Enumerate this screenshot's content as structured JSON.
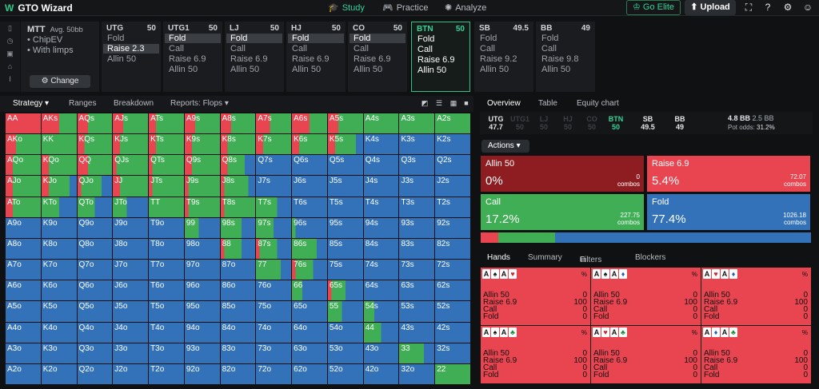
{
  "app": {
    "title": "GTO Wizard"
  },
  "nav": [
    {
      "label": "Study",
      "icon": "graduation-cap-icon"
    },
    {
      "label": "Practice",
      "icon": "gamepad-icon"
    },
    {
      "label": "Analyze",
      "icon": "lightbulb-icon"
    }
  ],
  "buttons": {
    "elite": "Go Elite",
    "upload": "Upload"
  },
  "config": {
    "game": "MTT",
    "stack": "Avg. 50bb",
    "opt1": "ChipEV",
    "opt2": "With limps",
    "change": "Change"
  },
  "positions": [
    {
      "name": "UTG",
      "stack": "50",
      "actions": [
        "Fold",
        "Raise 2.3",
        "Allin 50"
      ],
      "chosen": 1
    },
    {
      "name": "UTG1",
      "stack": "50",
      "actions": [
        "Fold",
        "Call",
        "Raise 6.9",
        "Allin 50"
      ],
      "chosen": 0
    },
    {
      "name": "LJ",
      "stack": "50",
      "actions": [
        "Fold",
        "Call",
        "Raise 6.9",
        "Allin 50"
      ],
      "chosen": 0
    },
    {
      "name": "HJ",
      "stack": "50",
      "actions": [
        "Fold",
        "Call",
        "Raise 6.9",
        "Allin 50"
      ],
      "chosen": 0
    },
    {
      "name": "CO",
      "stack": "50",
      "actions": [
        "Fold",
        "Call",
        "Raise 6.9",
        "Allin 50"
      ],
      "chosen": 0
    },
    {
      "name": "BTN",
      "stack": "50",
      "actions": [
        "Fold",
        "Call",
        "Raise 6.9",
        "Allin 50"
      ],
      "chosen": -1
    },
    {
      "name": "SB",
      "stack": "49.5",
      "actions": [
        "Fold",
        "Call",
        "Raise 9.2",
        "Allin 50"
      ],
      "chosen": -1
    },
    {
      "name": "BB",
      "stack": "49",
      "actions": [
        "Fold",
        "Call",
        "Raise 9.8",
        "Allin 50"
      ],
      "chosen": -1
    }
  ],
  "left_tabs": [
    "Strategy",
    "Ranges",
    "Breakdown",
    "Reports: Flops"
  ],
  "right_tabs": [
    "Overview",
    "Table",
    "Equity chart"
  ],
  "seats": [
    {
      "name": "UTG",
      "stack": "47.7"
    },
    {
      "name": "UTG1",
      "stack": "50"
    },
    {
      "name": "LJ",
      "stack": "50"
    },
    {
      "name": "HJ",
      "stack": "50"
    },
    {
      "name": "CO",
      "stack": "50"
    },
    {
      "name": "BTN",
      "stack": "50"
    },
    {
      "name": "SB",
      "stack": "49.5"
    },
    {
      "name": "BB",
      "stack": "49"
    }
  ],
  "pot": {
    "bb": "4.8 BB",
    "chips": "2.5 BB",
    "odds_label": "Pot odds:",
    "odds": "31.2%"
  },
  "actions_label": "Actions",
  "action_cards": [
    {
      "name": "Allin 50",
      "pct": "0%",
      "combos": "0",
      "unit": "combos",
      "color": "#8e1d22"
    },
    {
      "name": "Raise 6.9",
      "pct": "5.4%",
      "combos": "72.07",
      "unit": "combos",
      "color": "#e84551"
    },
    {
      "name": "Call",
      "pct": "17.2%",
      "combos": "227.75",
      "unit": "combos",
      "color": "#3fae55"
    },
    {
      "name": "Fold",
      "pct": "77.4%",
      "combos": "1026.18",
      "unit": "combos",
      "color": "#3372b8"
    }
  ],
  "freq_bar": [
    0.054,
    0.172,
    0.774
  ],
  "hand_tabs": [
    "Hands",
    "Summary",
    "Filters",
    "Blockers"
  ],
  "hand_combos": [
    {
      "cards": [
        {
          "r": "A",
          "s": "♠",
          "c": "#111"
        },
        {
          "r": "A",
          "s": "♥",
          "c": "#d2232a"
        }
      ],
      "values": [
        "0",
        "100",
        "0",
        "0"
      ]
    },
    {
      "cards": [
        {
          "r": "A",
          "s": "♠",
          "c": "#111"
        },
        {
          "r": "A",
          "s": "♦",
          "c": "#1f5fbf"
        }
      ],
      "values": [
        "0",
        "100",
        "0",
        "0"
      ]
    },
    {
      "cards": [
        {
          "r": "A",
          "s": "♥",
          "c": "#d2232a"
        },
        {
          "r": "A",
          "s": "♦",
          "c": "#1f5fbf"
        }
      ],
      "values": [
        "0",
        "100",
        "0",
        "0"
      ]
    },
    {
      "cards": [
        {
          "r": "A",
          "s": "♠",
          "c": "#111"
        },
        {
          "r": "A",
          "s": "♣",
          "c": "#1f8f3a"
        }
      ],
      "values": [
        "0",
        "100",
        "0",
        "0"
      ]
    },
    {
      "cards": [
        {
          "r": "A",
          "s": "♥",
          "c": "#d2232a"
        },
        {
          "r": "A",
          "s": "♣",
          "c": "#1f8f3a"
        }
      ],
      "values": [
        "0",
        "100",
        "0",
        "0"
      ]
    },
    {
      "cards": [
        {
          "r": "A",
          "s": "♦",
          "c": "#1f5fbf"
        },
        {
          "r": "A",
          "s": "♣",
          "c": "#1f8f3a"
        }
      ],
      "values": [
        "0",
        "100",
        "0",
        "0"
      ]
    }
  ],
  "hand_action_labels": [
    "Allin 50",
    "Raise 6.9",
    "Call",
    "Fold"
  ],
  "colors": {
    "raise": "#e84551",
    "call": "#3fae55",
    "fold": "#3372b8",
    "allin": "#8e1d22",
    "accent": "#34d399"
  },
  "matrix": {
    "ranks": [
      "A",
      "K",
      "Q",
      "J",
      "T",
      "9",
      "8",
      "7",
      "6",
      "5",
      "4",
      "3",
      "2"
    ],
    "labels": [
      [
        "AA",
        "AKs",
        "AQs",
        "AJs",
        "ATs",
        "A9s",
        "A8s",
        "A7s",
        "A6s",
        "A5s",
        "A4s",
        "A3s",
        "A2s"
      ],
      [
        "AKo",
        "KK",
        "KQs",
        "KJs",
        "KTs",
        "K9s",
        "K8s",
        "K7s",
        "K6s",
        "K5s",
        "K4s",
        "K3s",
        "K2s"
      ],
      [
        "AQo",
        "KQo",
        "QQ",
        "QJs",
        "QTs",
        "Q9s",
        "Q8s",
        "Q7s",
        "Q6s",
        "Q5s",
        "Q4s",
        "Q3s",
        "Q2s"
      ],
      [
        "AJo",
        "KJo",
        "QJo",
        "JJ",
        "JTs",
        "J9s",
        "J8s",
        "J7s",
        "J6s",
        "J5s",
        "J4s",
        "J3s",
        "J2s"
      ],
      [
        "ATo",
        "KTo",
        "QTo",
        "JTo",
        "TT",
        "T9s",
        "T8s",
        "T7s",
        "T6s",
        "T5s",
        "T4s",
        "T3s",
        "T2s"
      ],
      [
        "A9o",
        "K9o",
        "Q9o",
        "J9o",
        "T9o",
        "99",
        "98s",
        "97s",
        "96s",
        "95s",
        "94s",
        "93s",
        "92s"
      ],
      [
        "A8o",
        "K8o",
        "Q8o",
        "J8o",
        "T8o",
        "98o",
        "88",
        "87s",
        "86s",
        "85s",
        "84s",
        "83s",
        "82s"
      ],
      [
        "A7o",
        "K7o",
        "Q7o",
        "J7o",
        "T7o",
        "97o",
        "87o",
        "77",
        "76s",
        "75s",
        "74s",
        "73s",
        "72s"
      ],
      [
        "A6o",
        "K6o",
        "Q6o",
        "J6o",
        "T6o",
        "96o",
        "86o",
        "76o",
        "66",
        "65s",
        "64s",
        "63s",
        "62s"
      ],
      [
        "A5o",
        "K5o",
        "Q5o",
        "J5o",
        "T5o",
        "95o",
        "85o",
        "75o",
        "65o",
        "55",
        "54s",
        "53s",
        "52s"
      ],
      [
        "A4o",
        "K4o",
        "Q4o",
        "J4o",
        "T4o",
        "94o",
        "84o",
        "74o",
        "64o",
        "54o",
        "44",
        "43s",
        "42s"
      ],
      [
        "A3o",
        "K3o",
        "Q3o",
        "J3o",
        "T3o",
        "93o",
        "83o",
        "73o",
        "63o",
        "53o",
        "43o",
        "33",
        "32s"
      ],
      [
        "A2o",
        "K2o",
        "Q2o",
        "J2o",
        "T2o",
        "92o",
        "82o",
        "72o",
        "62o",
        "52o",
        "42o",
        "32o",
        "22"
      ]
    ],
    "mix": [
      [
        [
          1,
          0,
          0
        ],
        [
          0.5,
          0.5,
          0
        ],
        [
          0.3,
          0.7,
          0
        ],
        [
          0.3,
          0.7,
          0
        ],
        [
          0.2,
          0.8,
          0
        ],
        [
          0.3,
          0.7,
          0
        ],
        [
          0.3,
          0.7,
          0
        ],
        [
          0.4,
          0.6,
          0
        ],
        [
          0.5,
          0.5,
          0
        ],
        [
          0.3,
          0.7,
          0
        ],
        [
          0,
          1,
          0
        ],
        [
          0,
          1,
          0
        ],
        [
          0,
          1,
          0
        ]
      ],
      [
        [
          0.3,
          0.7,
          0
        ],
        [
          0,
          1,
          0
        ],
        [
          0.2,
          0.8,
          0
        ],
        [
          0.2,
          0.8,
          0
        ],
        [
          0.2,
          0.8,
          0
        ],
        [
          0.2,
          0.8,
          0
        ],
        [
          0.2,
          0.8,
          0
        ],
        [
          0.2,
          0.8,
          0
        ],
        [
          0.2,
          0.8,
          0
        ],
        [
          0.2,
          0.6,
          0.2
        ],
        [
          0,
          0,
          1
        ],
        [
          0,
          0,
          1
        ],
        [
          0,
          0,
          1
        ]
      ],
      [
        [
          0.2,
          0.8,
          0
        ],
        [
          0.2,
          0.8,
          0
        ],
        [
          0.3,
          0.7,
          0
        ],
        [
          0.1,
          0.9,
          0
        ],
        [
          0.1,
          0.9,
          0
        ],
        [
          0.2,
          0.8,
          0
        ],
        [
          0.2,
          0.5,
          0.3
        ],
        [
          0,
          0,
          1
        ],
        [
          0,
          0,
          1
        ],
        [
          0,
          0,
          1
        ],
        [
          0,
          0,
          1
        ],
        [
          0,
          0,
          1
        ],
        [
          0,
          0,
          1
        ]
      ],
      [
        [
          0.2,
          0.8,
          0
        ],
        [
          0.2,
          0.6,
          0.2
        ],
        [
          0.1,
          0.6,
          0.3
        ],
        [
          0.2,
          0.8,
          0
        ],
        [
          0.1,
          0.9,
          0
        ],
        [
          0.1,
          0.9,
          0
        ],
        [
          0.1,
          0.7,
          0.2
        ],
        [
          0,
          0,
          1
        ],
        [
          0,
          0,
          1
        ],
        [
          0,
          0,
          1
        ],
        [
          0,
          0,
          1
        ],
        [
          0,
          0,
          1
        ],
        [
          0,
          0,
          1
        ]
      ],
      [
        [
          0.2,
          0.8,
          0
        ],
        [
          0,
          0.5,
          0.5
        ],
        [
          0,
          0.5,
          0.5
        ],
        [
          0,
          0.4,
          0.6
        ],
        [
          0,
          1,
          0
        ],
        [
          0.1,
          0.9,
          0
        ],
        [
          0.1,
          0.9,
          0
        ],
        [
          0,
          0.6,
          0.4
        ],
        [
          0,
          0,
          1
        ],
        [
          0,
          0,
          1
        ],
        [
          0,
          0,
          1
        ],
        [
          0,
          0,
          1
        ],
        [
          0,
          0,
          1
        ]
      ],
      [
        [
          0,
          0,
          1
        ],
        [
          0,
          0,
          1
        ],
        [
          0,
          0,
          1
        ],
        [
          0,
          0,
          1
        ],
        [
          0,
          0,
          1
        ],
        [
          0,
          0.4,
          0.6
        ],
        [
          0,
          0.6,
          0.4
        ],
        [
          0,
          0.5,
          0.5
        ],
        [
          0,
          0.1,
          0.9
        ],
        [
          0,
          0,
          1
        ],
        [
          0,
          0,
          1
        ],
        [
          0,
          0,
          1
        ],
        [
          0,
          0,
          1
        ]
      ],
      [
        [
          0,
          0,
          1
        ],
        [
          0,
          0,
          1
        ],
        [
          0,
          0,
          1
        ],
        [
          0,
          0,
          1
        ],
        [
          0,
          0,
          1
        ],
        [
          0,
          0,
          1
        ],
        [
          0.1,
          0.5,
          0.4
        ],
        [
          0.1,
          0.5,
          0.4
        ],
        [
          0,
          0.7,
          0.3
        ],
        [
          0,
          0,
          1
        ],
        [
          0,
          0,
          1
        ],
        [
          0,
          0,
          1
        ],
        [
          0,
          0,
          1
        ]
      ],
      [
        [
          0,
          0,
          1
        ],
        [
          0,
          0,
          1
        ],
        [
          0,
          0,
          1
        ],
        [
          0,
          0,
          1
        ],
        [
          0,
          0,
          1
        ],
        [
          0,
          0,
          1
        ],
        [
          0,
          0,
          1
        ],
        [
          0,
          0.7,
          0.3
        ],
        [
          0.1,
          0.5,
          0.4
        ],
        [
          0,
          0,
          1
        ],
        [
          0,
          0,
          1
        ],
        [
          0,
          0,
          1
        ],
        [
          0,
          0,
          1
        ]
      ],
      [
        [
          0,
          0,
          1
        ],
        [
          0,
          0,
          1
        ],
        [
          0,
          0,
          1
        ],
        [
          0,
          0,
          1
        ],
        [
          0,
          0,
          1
        ],
        [
          0,
          0,
          1
        ],
        [
          0,
          0,
          1
        ],
        [
          0,
          0,
          1
        ],
        [
          0,
          0.3,
          0.7
        ],
        [
          0.1,
          0.4,
          0.5
        ],
        [
          0,
          0,
          1
        ],
        [
          0,
          0,
          1
        ],
        [
          0,
          0,
          1
        ]
      ],
      [
        [
          0,
          0,
          1
        ],
        [
          0,
          0,
          1
        ],
        [
          0,
          0,
          1
        ],
        [
          0,
          0,
          1
        ],
        [
          0,
          0,
          1
        ],
        [
          0,
          0,
          1
        ],
        [
          0,
          0,
          1
        ],
        [
          0,
          0,
          1
        ],
        [
          0,
          0,
          1
        ],
        [
          0,
          0.4,
          0.6
        ],
        [
          0,
          0.3,
          0.7
        ],
        [
          0,
          0,
          1
        ],
        [
          0,
          0,
          1
        ]
      ],
      [
        [
          0,
          0,
          1
        ],
        [
          0,
          0,
          1
        ],
        [
          0,
          0,
          1
        ],
        [
          0,
          0,
          1
        ],
        [
          0,
          0,
          1
        ],
        [
          0,
          0,
          1
        ],
        [
          0,
          0,
          1
        ],
        [
          0,
          0,
          1
        ],
        [
          0,
          0,
          1
        ],
        [
          0,
          0,
          1
        ],
        [
          0,
          0.5,
          0.5
        ],
        [
          0,
          0,
          1
        ],
        [
          0,
          0,
          1
        ]
      ],
      [
        [
          0,
          0,
          1
        ],
        [
          0,
          0,
          1
        ],
        [
          0,
          0,
          1
        ],
        [
          0,
          0,
          1
        ],
        [
          0,
          0,
          1
        ],
        [
          0,
          0,
          1
        ],
        [
          0,
          0,
          1
        ],
        [
          0,
          0,
          1
        ],
        [
          0,
          0,
          1
        ],
        [
          0,
          0,
          1
        ],
        [
          0,
          0,
          1
        ],
        [
          0,
          0.7,
          0.3
        ],
        [
          0,
          0,
          1
        ]
      ],
      [
        [
          0,
          0,
          1
        ],
        [
          0,
          0,
          1
        ],
        [
          0,
          0,
          1
        ],
        [
          0,
          0,
          1
        ],
        [
          0,
          0,
          1
        ],
        [
          0,
          0,
          1
        ],
        [
          0,
          0,
          1
        ],
        [
          0,
          0,
          1
        ],
        [
          0,
          0,
          1
        ],
        [
          0,
          0,
          1
        ],
        [
          0,
          0,
          1
        ],
        [
          0,
          0,
          1
        ],
        [
          0,
          1,
          0
        ]
      ]
    ]
  }
}
